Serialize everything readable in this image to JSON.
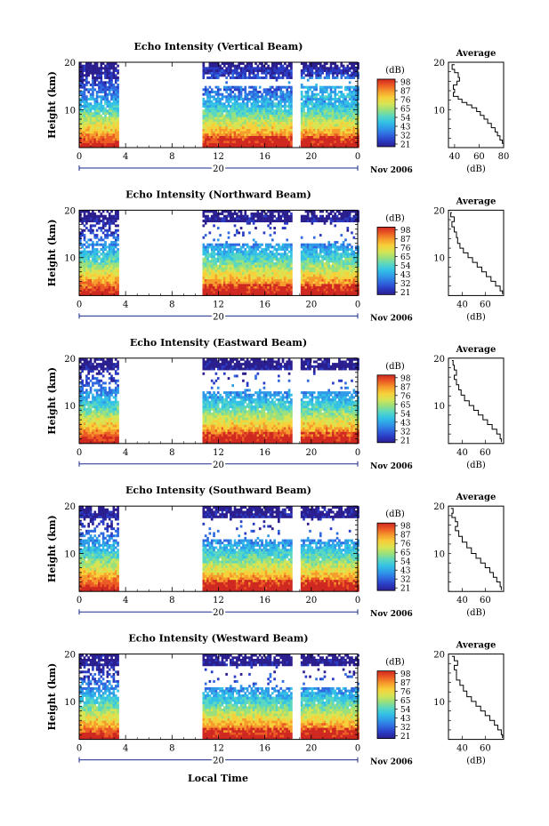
{
  "figure": {
    "date_label": "Nov 2006",
    "xlabel": "Local Time"
  },
  "colorbar": {
    "title": "(dB)",
    "colors": [
      "#2b1e8f",
      "#2a3cc4",
      "#2f6ae0",
      "#2f9ae8",
      "#33c2e6",
      "#5ad7c0",
      "#9ae07c",
      "#d7e454",
      "#f7d03a",
      "#f59c2c",
      "#ec5b24",
      "#cf2820"
    ]
  },
  "chart_data": [
    {
      "type": "heatmap",
      "title": "Echo Intensity (Vertical Beam)",
      "ylabel": "Height (km)",
      "ylim": [
        2,
        20
      ],
      "y_ticks": [
        "20",
        "10"
      ],
      "xlim": [
        0,
        24
      ],
      "x_ticks": [
        "0",
        "4",
        "8",
        "12",
        "16",
        "20",
        "0"
      ],
      "x_day_label": "20",
      "data_gaps_hours": [
        [
          3.5,
          10.7
        ],
        [
          18.3,
          19.0
        ]
      ],
      "colorbar": {
        "title": "(dB)",
        "ticks": [
          "98",
          "87",
          "76",
          "65",
          "54",
          "43",
          "32",
          "21"
        ]
      },
      "profile": {
        "title": "Average",
        "xlabel": "(dB)",
        "xlim": [
          35,
          80
        ],
        "x_ticks": [
          "40",
          "60",
          "80"
        ],
        "ylim": [
          2,
          20
        ],
        "y_ticks": [
          "20",
          "10"
        ],
        "points": [
          [
            40,
            19.5
          ],
          [
            38,
            18.5
          ],
          [
            40,
            17.8
          ],
          [
            43,
            16.8
          ],
          [
            44,
            16
          ],
          [
            42,
            15.2
          ],
          [
            39,
            14.3
          ],
          [
            40,
            13.6
          ],
          [
            39,
            12.8
          ],
          [
            43,
            12.2
          ],
          [
            46,
            11.5
          ],
          [
            50,
            11
          ],
          [
            54,
            10.4
          ],
          [
            58,
            9.6
          ],
          [
            61,
            8.8
          ],
          [
            64,
            8
          ],
          [
            67,
            7.1
          ],
          [
            70,
            6.2
          ],
          [
            73,
            5.3
          ],
          [
            75,
            4.5
          ],
          [
            77,
            3.6
          ],
          [
            79,
            2.9
          ],
          [
            80,
            2.3
          ]
        ]
      }
    },
    {
      "type": "heatmap",
      "title": "Echo Intensity (Northward Beam)",
      "ylabel": "Height (km)",
      "ylim": [
        2,
        20
      ],
      "y_ticks": [
        "20",
        "10"
      ],
      "xlim": [
        0,
        24
      ],
      "x_ticks": [
        "0",
        "4",
        "8",
        "12",
        "16",
        "20",
        "0"
      ],
      "x_day_label": "20",
      "data_gaps_hours": [
        [
          3.5,
          10.7
        ],
        [
          18.3,
          19.0
        ]
      ],
      "colorbar": {
        "title": "(dB)",
        "ticks": [
          "98",
          "87",
          "76",
          "65",
          "54",
          "43",
          "32",
          "21"
        ]
      },
      "profile": {
        "title": "Average",
        "xlabel": "(dB)",
        "xlim": [
          28,
          76
        ],
        "x_ticks": [
          "40",
          "60"
        ],
        "ylim": [
          2,
          20
        ],
        "y_ticks": [
          "20",
          "10"
        ],
        "points": [
          [
            31,
            19.5
          ],
          [
            30,
            18.6
          ],
          [
            33,
            17.6
          ],
          [
            31,
            16.5
          ],
          [
            33,
            15.4
          ],
          [
            35,
            14.2
          ],
          [
            36,
            13
          ],
          [
            38,
            12
          ],
          [
            41,
            11
          ],
          [
            45,
            10
          ],
          [
            49,
            9
          ],
          [
            53,
            8
          ],
          [
            57,
            7
          ],
          [
            61,
            6
          ],
          [
            65,
            5
          ],
          [
            69,
            4
          ],
          [
            73,
            3
          ],
          [
            75,
            2.3
          ]
        ]
      }
    },
    {
      "type": "heatmap",
      "title": "Echo Intensity (Eastward Beam)",
      "ylabel": "Height (km)",
      "ylim": [
        2,
        20
      ],
      "y_ticks": [
        "20",
        "10"
      ],
      "xlim": [
        0,
        24
      ],
      "x_ticks": [
        "0",
        "4",
        "8",
        "12",
        "16",
        "20",
        "0"
      ],
      "x_day_label": "20",
      "data_gaps_hours": [
        [
          3.5,
          10.7
        ],
        [
          18.3,
          19.0
        ]
      ],
      "colorbar": {
        "title": "(dB)",
        "ticks": [
          "98",
          "87",
          "76",
          "65",
          "54",
          "43",
          "32",
          "21"
        ]
      },
      "profile": {
        "title": "Average",
        "xlabel": "(dB)",
        "xlim": [
          28,
          76
        ],
        "x_ticks": [
          "40",
          "60"
        ],
        "ylim": [
          2,
          20
        ],
        "y_ticks": [
          "20",
          "10"
        ],
        "points": [
          [
            31,
            19.5
          ],
          [
            32,
            18.5
          ],
          [
            33,
            17.5
          ],
          [
            35,
            16.4
          ],
          [
            33,
            15.5
          ],
          [
            35,
            14.4
          ],
          [
            37,
            13.3
          ],
          [
            39,
            12.2
          ],
          [
            42,
            11
          ],
          [
            46,
            10
          ],
          [
            50,
            9
          ],
          [
            54,
            8
          ],
          [
            58,
            7
          ],
          [
            62,
            6
          ],
          [
            66,
            5
          ],
          [
            70,
            4
          ],
          [
            73,
            3
          ],
          [
            74,
            2.3
          ]
        ]
      }
    },
    {
      "type": "heatmap",
      "title": "Echo Intensity (Southward Beam)",
      "ylabel": "Height (km)",
      "ylim": [
        2,
        20
      ],
      "y_ticks": [
        "20",
        "10"
      ],
      "xlim": [
        0,
        24
      ],
      "x_ticks": [
        "0",
        "4",
        "8",
        "12",
        "16",
        "20",
        "0"
      ],
      "x_day_label": "20",
      "data_gaps_hours": [
        [
          3.5,
          10.7
        ],
        [
          18.3,
          19.0
        ]
      ],
      "colorbar": {
        "title": "(dB)",
        "ticks": [
          "98",
          "87",
          "76",
          "65",
          "54",
          "43",
          "32",
          "21"
        ]
      },
      "profile": {
        "title": "Average",
        "xlabel": "(dB)",
        "xlim": [
          28,
          76
        ],
        "x_ticks": [
          "40",
          "60"
        ],
        "ylim": [
          2,
          20
        ],
        "y_ticks": [
          "20",
          "10"
        ],
        "points": [
          [
            30,
            19.5
          ],
          [
            32,
            18.5
          ],
          [
            31,
            17.6
          ],
          [
            34,
            16.7
          ],
          [
            36,
            15.7
          ],
          [
            34,
            14.8
          ],
          [
            37,
            13.6
          ],
          [
            40,
            12.4
          ],
          [
            44,
            11.2
          ],
          [
            48,
            10
          ],
          [
            52,
            9
          ],
          [
            56,
            8
          ],
          [
            60,
            7
          ],
          [
            64,
            6
          ],
          [
            67,
            5
          ],
          [
            70,
            4
          ],
          [
            73,
            3
          ],
          [
            74,
            2.3
          ]
        ]
      }
    },
    {
      "type": "heatmap",
      "title": "Echo Intensity (Westward Beam)",
      "ylabel": "Height (km)",
      "ylim": [
        2,
        20
      ],
      "y_ticks": [
        "20",
        "10"
      ],
      "xlim": [
        0,
        24
      ],
      "x_ticks": [
        "0",
        "4",
        "8",
        "12",
        "16",
        "20",
        "0"
      ],
      "x_day_label": "20",
      "data_gaps_hours": [
        [
          3.5,
          10.7
        ],
        [
          18.3,
          19.0
        ]
      ],
      "colorbar": {
        "title": "(dB)",
        "ticks": [
          "98",
          "87",
          "76",
          "65",
          "54",
          "43",
          "32",
          "21"
        ]
      },
      "profile": {
        "title": "Average",
        "xlabel": "(dB)",
        "xlim": [
          28,
          76
        ],
        "x_ticks": [
          "40",
          "60"
        ],
        "ylim": [
          2,
          20
        ],
        "y_ticks": [
          "20",
          "10"
        ],
        "points": [
          [
            31,
            19.5
          ],
          [
            33,
            18.6
          ],
          [
            36,
            17.6
          ],
          [
            33,
            16.7
          ],
          [
            35,
            15.6
          ],
          [
            35,
            14.5
          ],
          [
            38,
            13.4
          ],
          [
            41,
            12.2
          ],
          [
            44,
            11
          ],
          [
            48,
            10
          ],
          [
            52,
            9
          ],
          [
            56,
            8
          ],
          [
            60,
            7
          ],
          [
            64,
            6
          ],
          [
            68,
            5
          ],
          [
            71,
            4
          ],
          [
            74,
            3
          ],
          [
            75,
            2.3
          ]
        ]
      }
    }
  ]
}
